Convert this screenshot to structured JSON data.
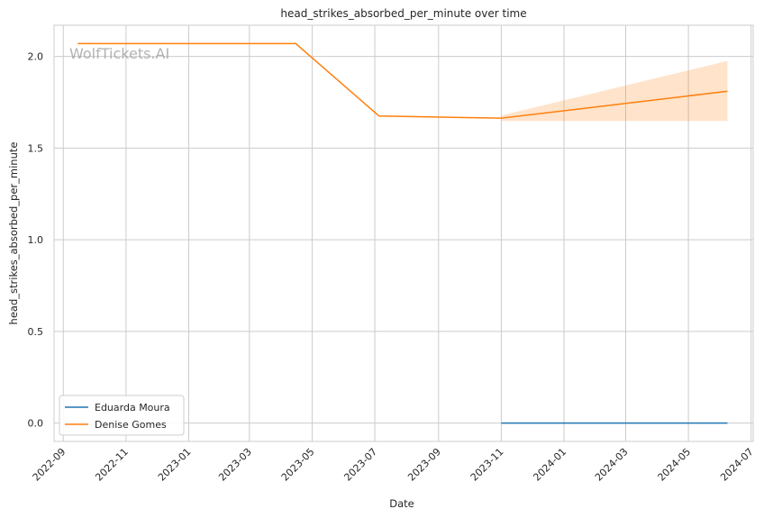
{
  "chart_data": {
    "type": "line",
    "title": "head_strikes_absorbed_per_minute over time",
    "xlabel": "Date",
    "ylabel": "head_strikes_absorbed_per_minute",
    "x_ticks": [
      "2022-09",
      "2022-11",
      "2023-01",
      "2023-03",
      "2023-05",
      "2023-07",
      "2023-09",
      "2023-11",
      "2024-01",
      "2024-03",
      "2024-05",
      "2024-07"
    ],
    "y_ticks": [
      "0.0",
      "0.5",
      "1.0",
      "1.5",
      "2.0"
    ],
    "ylim": [
      -0.1,
      2.17
    ],
    "xlim": [
      "2022-08-23",
      "2024-07-03"
    ],
    "grid": true,
    "legend_position": "lower-left",
    "watermark": "WolfTickets.AI",
    "series": [
      {
        "name": "Eduarda Moura",
        "color": "#1f77b4",
        "x": [
          "2023-11-01",
          "2024-06-08"
        ],
        "y": [
          0.0,
          0.0
        ]
      },
      {
        "name": "Denise Gomes",
        "color": "#ff7f0e",
        "x": [
          "2022-09-15",
          "2023-04-15",
          "2023-07-05",
          "2023-11-01",
          "2024-06-08"
        ],
        "y": [
          2.07,
          2.07,
          1.675,
          1.663,
          1.81
        ],
        "band": {
          "x": [
            "2023-11-01",
            "2024-06-08"
          ],
          "lower": [
            1.648,
            1.648
          ],
          "upper": [
            1.678,
            1.975
          ]
        }
      }
    ]
  }
}
